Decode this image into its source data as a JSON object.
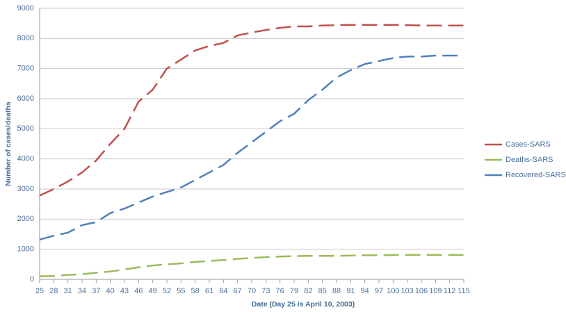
{
  "chart_data": {
    "type": "line",
    "x_label": "Date (Day 25 is April 10, 2003)",
    "y_label": "Number of cases/deaths",
    "x": [
      25,
      28,
      31,
      34,
      37,
      40,
      43,
      46,
      49,
      52,
      55,
      58,
      61,
      64,
      67,
      70,
      73,
      76,
      79,
      82,
      85,
      88,
      91,
      94,
      97,
      100,
      103,
      106,
      109,
      112,
      115
    ],
    "xlim": [
      25,
      115
    ],
    "xticks": [
      25,
      28,
      31,
      34,
      37,
      40,
      43,
      46,
      49,
      52,
      55,
      58,
      61,
      64,
      67,
      70,
      73,
      76,
      79,
      82,
      85,
      88,
      91,
      94,
      97,
      100,
      103,
      106,
      109,
      112,
      115
    ],
    "ylim": [
      0,
      9000
    ],
    "yticks": [
      0,
      1000,
      2000,
      3000,
      4000,
      5000,
      6000,
      7000,
      8000,
      9000
    ],
    "grid": true,
    "legend": "right",
    "series": [
      {
        "name": "Cases-SARS",
        "color": "#c0504d",
        "values": [
          2780,
          3000,
          3250,
          3550,
          3950,
          4500,
          5000,
          5900,
          6300,
          7000,
          7300,
          7600,
          7750,
          7850,
          8100,
          8200,
          8280,
          8350,
          8400,
          8400,
          8430,
          8440,
          8450,
          8450,
          8450,
          8450,
          8440,
          8430,
          8430,
          8430,
          8430
        ]
      },
      {
        "name": "Deaths-SARS",
        "color": "#9bbb59",
        "values": [
          100,
          110,
          150,
          170,
          220,
          260,
          330,
          400,
          460,
          500,
          530,
          580,
          610,
          640,
          680,
          710,
          740,
          760,
          770,
          780,
          780,
          780,
          790,
          800,
          800,
          810,
          810,
          810,
          810,
          810,
          810
        ]
      },
      {
        "name": "Recovered-SARS",
        "color": "#4f81bd",
        "values": [
          1320,
          1450,
          1550,
          1800,
          1900,
          2200,
          2350,
          2550,
          2750,
          2900,
          3050,
          3300,
          3550,
          3800,
          4200,
          4550,
          4900,
          5250,
          5500,
          5950,
          6300,
          6700,
          6950,
          7150,
          7250,
          7350,
          7400,
          7400,
          7430,
          7430,
          7430
        ]
      }
    ]
  }
}
